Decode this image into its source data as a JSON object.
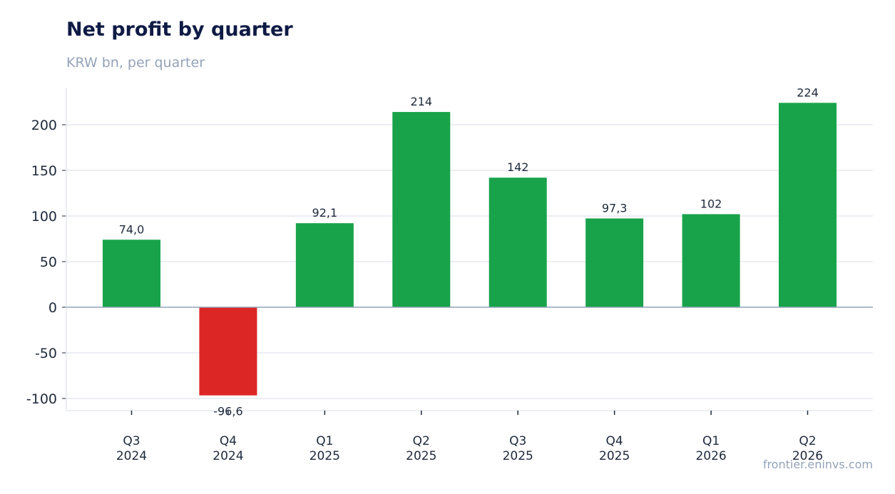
{
  "header": {
    "title": "Net profit by quarter",
    "subtitle": "KRW bn, per quarter"
  },
  "footer": {
    "source": "frontier.eninvs.com"
  },
  "colors": {
    "positive": "#18a34a",
    "negative": "#dc2626",
    "grid": "#e5e8f0",
    "zero_line": "#94a3b8"
  },
  "chart_data": {
    "type": "bar",
    "title": "Net profit by quarter",
    "subtitle": "KRW bn, per quarter",
    "categories": [
      [
        "Q3",
        "2024"
      ],
      [
        "Q4",
        "2024"
      ],
      [
        "Q1",
        "2025"
      ],
      [
        "Q2",
        "2025"
      ],
      [
        "Q3",
        "2025"
      ],
      [
        "Q4",
        "2025"
      ],
      [
        "Q1",
        "2026"
      ],
      [
        "Q2",
        "2026"
      ]
    ],
    "values": [
      74.0,
      -96.6,
      92.1,
      214,
      142,
      97.3,
      102,
      224
    ],
    "data_labels": [
      "74,0",
      "-96,6",
      "92,1",
      "214",
      "142",
      "97,3",
      "102",
      "224"
    ],
    "yticks": [
      -100,
      -50,
      0,
      50,
      100,
      150,
      200
    ],
    "ytick_labels": [
      "-100",
      "-50",
      "0",
      "50",
      "100",
      "150",
      "200"
    ],
    "ylim": [
      -112,
      240
    ],
    "grid": true,
    "legend": "none"
  }
}
